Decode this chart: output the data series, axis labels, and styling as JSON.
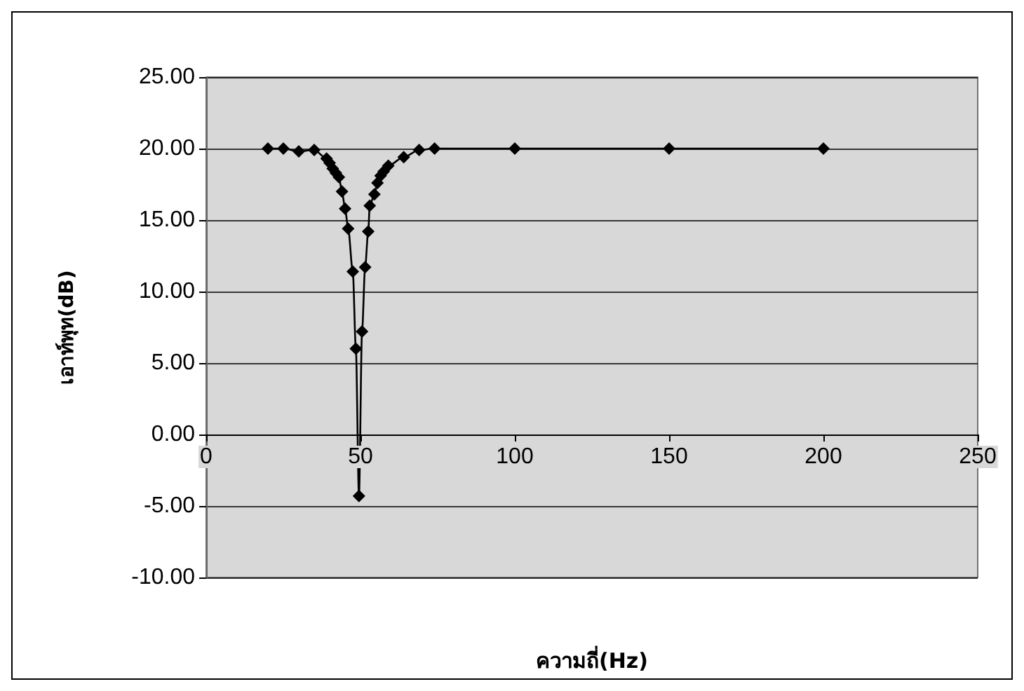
{
  "chart_data": {
    "type": "line",
    "xlabel": "ความถี่(Hz)",
    "ylabel": "เอาท์พุท(dB)",
    "x": [
      20,
      25,
      30,
      35,
      39,
      40,
      41,
      42,
      43,
      44,
      45,
      46,
      47.5,
      48.5,
      49.5,
      50.5,
      51.5,
      52.5,
      53,
      54.5,
      55.5,
      56.5,
      57.5,
      59,
      64,
      69,
      74,
      100,
      150,
      200
    ],
    "series": [
      {
        "color": "#000000",
        "values": [
          20,
          20,
          19.8,
          19.9,
          19.3,
          19,
          18.6,
          18.3,
          18,
          17,
          15.8,
          14.4,
          11.4,
          6,
          -4.3,
          7.2,
          11.7,
          14.2,
          16,
          16.8,
          17.6,
          18.1,
          18.4,
          18.8,
          19.4,
          19.9,
          20,
          20,
          20,
          20
        ]
      }
    ],
    "xlim": [
      0,
      250
    ],
    "xticks": [
      0,
      50,
      100,
      150,
      200,
      250
    ],
    "ylim": [
      -10,
      25
    ],
    "yticks": [
      {
        "value": -10,
        "label": "-10.00"
      },
      {
        "value": -5,
        "label": "-5.00"
      },
      {
        "value": 0,
        "label": "0.00"
      },
      {
        "value": 5,
        "label": "5.00"
      },
      {
        "value": 10,
        "label": "10.00"
      },
      {
        "value": 15,
        "label": "15.00"
      },
      {
        "value": 20,
        "label": "20.00"
      },
      {
        "value": 25,
        "label": "25.00"
      }
    ],
    "grid": "y",
    "marker": "diamond",
    "line_style": "solid"
  }
}
